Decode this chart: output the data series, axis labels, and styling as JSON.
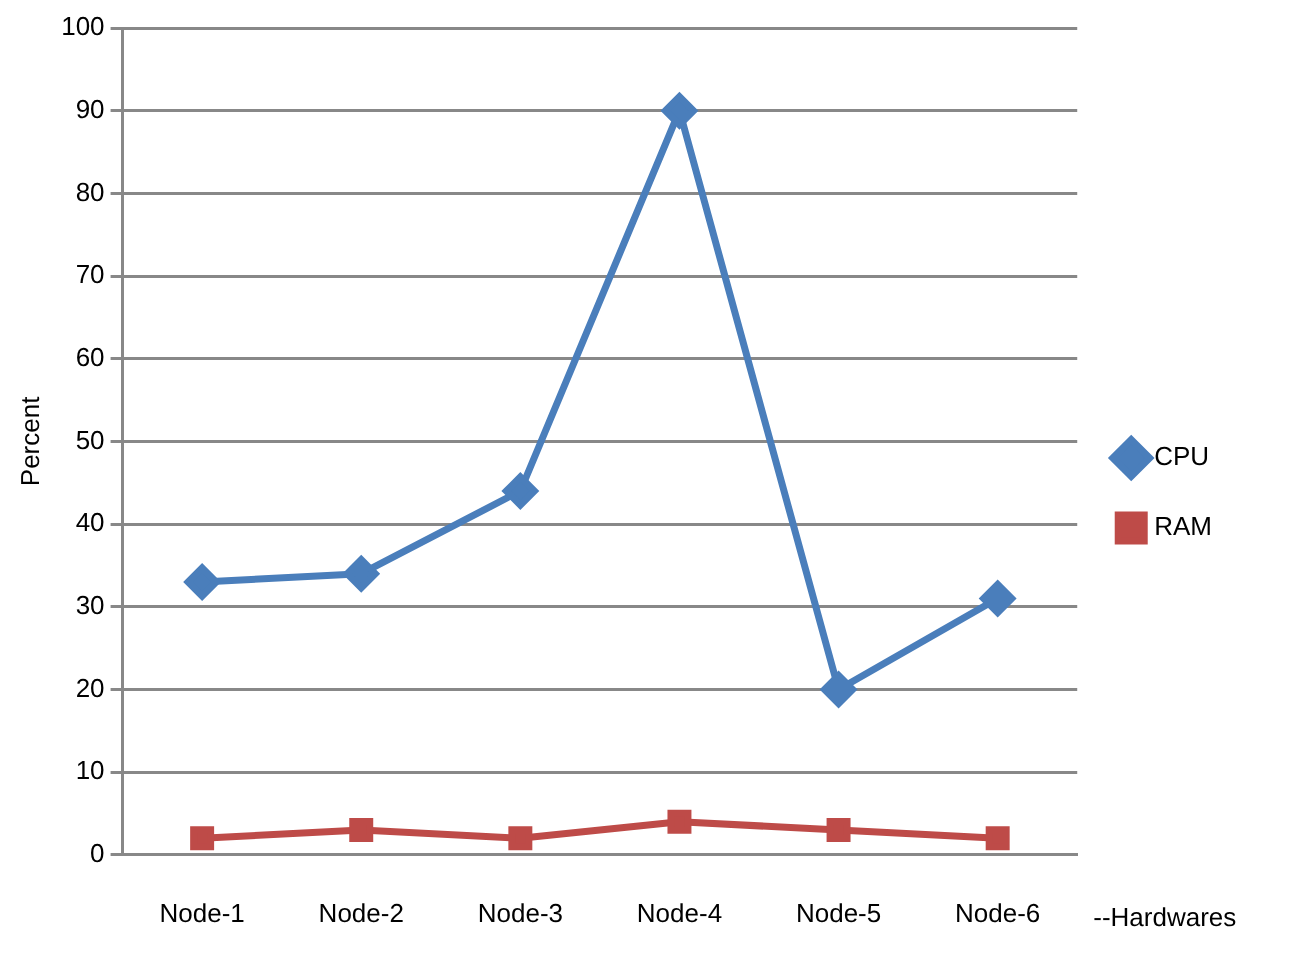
{
  "chart_data": {
    "type": "line",
    "xlabel": "--Hardwares",
    "ylabel": "Percent",
    "categories": [
      "Node-1",
      "Node-2",
      "Node-3",
      "Node-4",
      "Node-5",
      "Node-6"
    ],
    "series": [
      {
        "name": "CPU",
        "color": "#4a7ebb",
        "values": [
          33,
          34,
          44,
          90,
          20,
          31
        ],
        "marker": "diamond"
      },
      {
        "name": "RAM",
        "color": "#be4b48",
        "values": [
          2,
          3,
          2,
          4,
          3,
          2
        ],
        "marker": "square"
      }
    ],
    "ylim": [
      0,
      100
    ],
    "yticks": [
      0,
      10,
      20,
      30,
      40,
      50,
      60,
      70,
      80,
      90,
      100
    ],
    "grid": "y",
    "legend": "right",
    "line_style": "solid"
  }
}
